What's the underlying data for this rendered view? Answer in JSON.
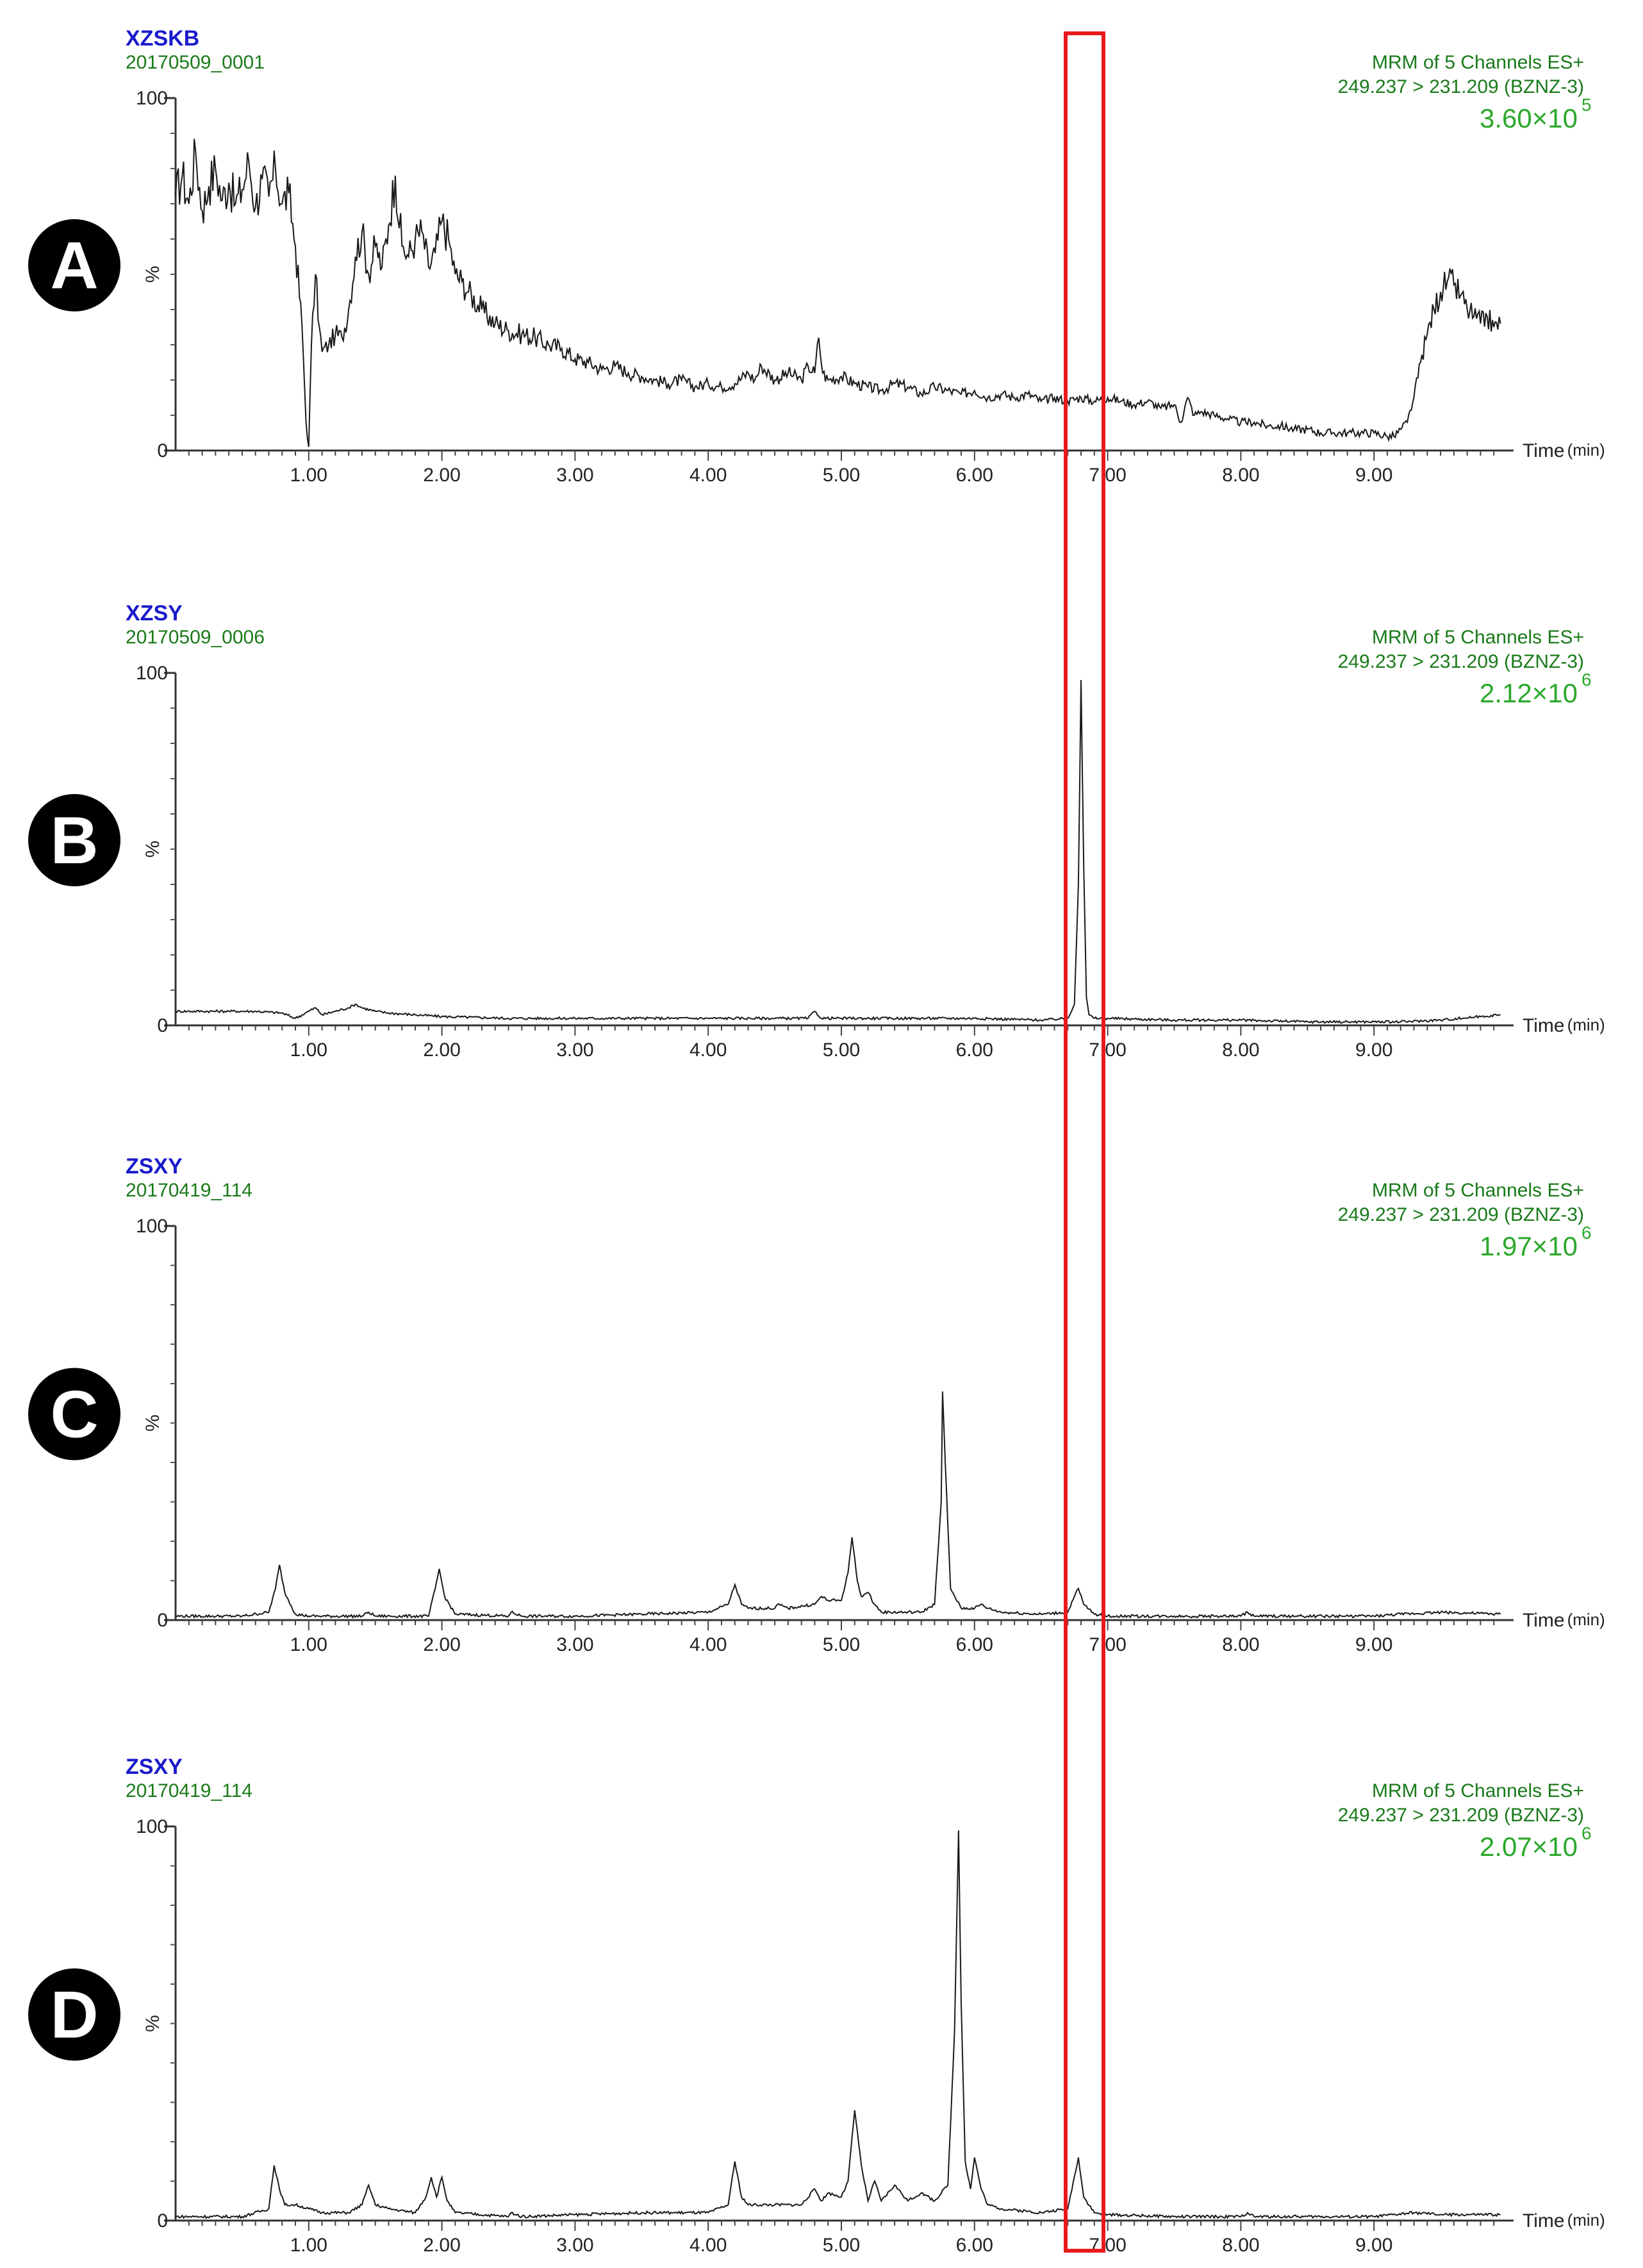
{
  "figure": {
    "highlight_color": "#e8191c",
    "sample_name_color": "#1a1acc",
    "meta_color": "#1a7a1a",
    "intensity_color": "#2aa82a",
    "trace_color": "#1a1a1a"
  },
  "chart_data": [
    {
      "type": "line",
      "panel_letter": "A",
      "sample_name": "XZSKB",
      "file_id": "20170509_0001",
      "meta_line1": "MRM of 5 Channels ES+",
      "meta_line2": "249.237 > 231.209 (BZNZ-3)",
      "intensity_mantissa": "3.60×10",
      "intensity_exponent": "5",
      "y_top_label": "100",
      "y_bottom_label": "0",
      "ylabel": "%",
      "xlabel": "Time",
      "xunit": "(min)",
      "xlim": [
        0,
        10
      ],
      "ylim": [
        0,
        100
      ],
      "xticks": [
        "1.00",
        "2.00",
        "3.00",
        "4.00",
        "5.00",
        "6.00",
        "7.00",
        "8.00",
        "9.00"
      ],
      "series": [
        {
          "x": [
            0,
            0.05,
            0.1,
            0.15,
            0.2,
            0.25,
            0.3,
            0.35,
            0.4,
            0.45,
            0.5,
            0.55,
            0.6,
            0.65,
            0.7,
            0.75,
            0.8,
            0.85,
            0.9,
            0.95,
            0.98,
            1.0,
            1.02,
            1.05,
            1.08,
            1.1,
            1.15,
            1.2,
            1.25,
            1.3,
            1.35,
            1.4,
            1.45,
            1.5,
            1.55,
            1.6,
            1.65,
            1.7,
            1.75,
            1.8,
            1.85,
            1.9,
            1.95,
            2.0,
            2.05,
            2.1,
            2.15,
            2.2,
            2.3,
            2.4,
            2.5,
            2.6,
            2.7,
            2.8,
            2.9,
            3.0,
            3.1,
            3.2,
            3.3,
            3.4,
            3.5,
            3.6,
            3.7,
            3.8,
            3.9,
            4.0,
            4.1,
            4.2,
            4.3,
            4.35,
            4.4,
            4.5,
            4.6,
            4.7,
            4.75,
            4.8,
            4.83,
            4.86,
            4.9,
            5.0,
            5.1,
            5.2,
            5.3,
            5.4,
            5.5,
            5.6,
            5.7,
            5.8,
            5.9,
            6.0,
            6.1,
            6.2,
            6.3,
            6.4,
            6.5,
            6.6,
            6.7,
            6.8,
            6.9,
            7.0,
            7.1,
            7.2,
            7.3,
            7.4,
            7.5,
            7.55,
            7.6,
            7.65,
            7.7,
            7.8,
            7.9,
            8.0,
            8.1,
            8.2,
            8.3,
            8.4,
            8.5,
            8.6,
            8.7,
            8.8,
            8.9,
            9.0,
            9.1,
            9.15,
            9.2,
            9.25,
            9.3,
            9.35,
            9.4,
            9.45,
            9.5,
            9.55,
            9.6,
            9.65,
            9.7,
            9.75,
            9.8,
            9.85,
            9.9,
            9.95
          ],
          "y": [
            72,
            78,
            70,
            85,
            68,
            75,
            80,
            71,
            76,
            70,
            74,
            82,
            69,
            77,
            72,
            80,
            70,
            73,
            58,
            35,
            8,
            1,
            30,
            50,
            35,
            28,
            30,
            33,
            32,
            40,
            55,
            62,
            50,
            58,
            52,
            64,
            78,
            58,
            55,
            60,
            62,
            52,
            56,
            65,
            60,
            50,
            48,
            45,
            40,
            36,
            34,
            33,
            32,
            30,
            29,
            26,
            25,
            23,
            24,
            22,
            21,
            20,
            19,
            20,
            18,
            19,
            18,
            19,
            22,
            20,
            24,
            20,
            22,
            20,
            24,
            22,
            32,
            22,
            20,
            21,
            19,
            18,
            17,
            19,
            18,
            16,
            18,
            17,
            16,
            17,
            15,
            16,
            15,
            16,
            14,
            15,
            14,
            15,
            14,
            15,
            14,
            13,
            14,
            12,
            13,
            8,
            15,
            10,
            11,
            10,
            9,
            8,
            8,
            7,
            7,
            6,
            6,
            5,
            5,
            5,
            5,
            5,
            4,
            4,
            6,
            8,
            15,
            25,
            33,
            40,
            45,
            48,
            47,
            44,
            40,
            38,
            36,
            38,
            35,
            36
          ]
        }
      ]
    },
    {
      "type": "line",
      "panel_letter": "B",
      "sample_name": "XZSY",
      "file_id": "20170509_0006",
      "meta_line1": "MRM of 5 Channels ES+",
      "meta_line2": "249.237 > 231.209 (BZNZ-3)",
      "intensity_mantissa": "2.12×10",
      "intensity_exponent": "6",
      "y_top_label": "100",
      "y_bottom_label": "0",
      "ylabel": "%",
      "xlabel": "Time",
      "xunit": "(min)",
      "xlim": [
        0,
        10
      ],
      "ylim": [
        0,
        100
      ],
      "xticks": [
        "1.00",
        "2.00",
        "3.00",
        "4.00",
        "5.00",
        "6.00",
        "7.00",
        "8.00",
        "9.00"
      ],
      "series": [
        {
          "x": [
            0,
            0.2,
            0.4,
            0.6,
            0.8,
            0.9,
            1.0,
            1.05,
            1.1,
            1.2,
            1.3,
            1.35,
            1.4,
            1.5,
            1.6,
            1.8,
            2.0,
            2.5,
            3.0,
            3.5,
            4.0,
            4.5,
            4.75,
            4.8,
            4.85,
            5.0,
            5.5,
            6.0,
            6.5,
            6.7,
            6.75,
            6.78,
            6.8,
            6.82,
            6.84,
            6.86,
            6.9,
            7.0,
            7.5,
            8.0,
            8.5,
            9.0,
            9.2,
            9.5,
            9.8,
            9.95
          ],
          "y": [
            4,
            4,
            4,
            4,
            3.5,
            2,
            4,
            5,
            3,
            4,
            5,
            6,
            5,
            4,
            3.5,
            3,
            2.5,
            2,
            2,
            2,
            2,
            2,
            2,
            4,
            2,
            2,
            2,
            2,
            1.5,
            2,
            6,
            40,
            98,
            45,
            8,
            3,
            2,
            2,
            1.5,
            1.5,
            1,
            1,
            1,
            1.5,
            2.5,
            3
          ]
        }
      ]
    },
    {
      "type": "line",
      "panel_letter": "C",
      "sample_name": "ZSXY",
      "file_id": "20170419_114",
      "meta_line1": "MRM of 5 Channels ES+",
      "meta_line2": "249.237 > 231.209 (BZNZ-3)",
      "intensity_mantissa": "1.97×10",
      "intensity_exponent": "6",
      "y_top_label": "100",
      "y_bottom_label": "0",
      "ylabel": "%",
      "xlabel": "Time",
      "xunit": "(min)",
      "xlim": [
        0,
        10
      ],
      "ylim": [
        0,
        100
      ],
      "xticks": [
        "1.00",
        "2.00",
        "3.00",
        "4.00",
        "5.00",
        "6.00",
        "7.00",
        "8.00",
        "9.00"
      ],
      "series": [
        {
          "x": [
            0,
            0.5,
            0.7,
            0.75,
            0.78,
            0.82,
            0.9,
            1.0,
            1.4,
            1.45,
            1.5,
            1.9,
            1.95,
            1.98,
            2.02,
            2.1,
            2.5,
            2.52,
            2.6,
            3.0,
            3.5,
            4.0,
            4.15,
            4.2,
            4.25,
            4.3,
            4.5,
            4.52,
            4.6,
            4.8,
            4.85,
            4.9,
            5.0,
            5.05,
            5.08,
            5.12,
            5.15,
            5.2,
            5.25,
            5.3,
            5.6,
            5.7,
            5.75,
            5.76,
            5.78,
            5.82,
            5.9,
            6.0,
            6.05,
            6.1,
            6.2,
            6.5,
            6.7,
            6.75,
            6.78,
            6.82,
            6.9,
            7.0,
            7.5,
            8.0,
            8.05,
            8.1,
            8.5,
            9.0,
            9.2,
            9.5,
            9.95
          ],
          "y": [
            1,
            1,
            2,
            8,
            14,
            7,
            1.5,
            1,
            1,
            2,
            1,
            1,
            8,
            13,
            6,
            1.5,
            1,
            2,
            1,
            1,
            1.5,
            2,
            4,
            9,
            4,
            3,
            3,
            4,
            3,
            4,
            6,
            5,
            5,
            12,
            21,
            10,
            6,
            7,
            4,
            2,
            2,
            4,
            30,
            58,
            40,
            8,
            3,
            3,
            4,
            3,
            2,
            1.5,
            2,
            6,
            8,
            4,
            1.5,
            1,
            1,
            1,
            2,
            1,
            1,
            1,
            1.5,
            2,
            1.5
          ]
        }
      ]
    },
    {
      "type": "line",
      "panel_letter": "D",
      "sample_name": "ZSXY",
      "file_id": "20170419_114",
      "meta_line1": "MRM of 5 Channels ES+",
      "meta_line2": "249.237 > 231.209 (BZNZ-3)",
      "intensity_mantissa": "2.07×10",
      "intensity_exponent": "6",
      "y_top_label": "100",
      "y_bottom_label": "0",
      "ylabel": "%",
      "xlabel": "Time",
      "xunit": "(min)",
      "xlim": [
        0,
        10
      ],
      "ylim": [
        0,
        100
      ],
      "xticks": [
        "1.00",
        "2.00",
        "3.00",
        "4.00",
        "5.00",
        "6.00",
        "7.00",
        "8.00",
        "9.00"
      ],
      "series": [
        {
          "x": [
            0,
            0.5,
            0.7,
            0.74,
            0.78,
            0.82,
            0.9,
            1.0,
            1.1,
            1.3,
            1.4,
            1.45,
            1.5,
            1.6,
            1.8,
            1.88,
            1.92,
            1.96,
            2.0,
            2.04,
            2.1,
            2.5,
            2.52,
            2.6,
            3.0,
            3.5,
            4.0,
            4.15,
            4.2,
            4.25,
            4.3,
            4.5,
            4.7,
            4.8,
            4.85,
            4.9,
            5.0,
            5.05,
            5.1,
            5.15,
            5.2,
            5.25,
            5.3,
            5.4,
            5.5,
            5.6,
            5.7,
            5.8,
            5.85,
            5.88,
            5.9,
            5.93,
            5.97,
            6.0,
            6.05,
            6.1,
            6.2,
            6.5,
            6.7,
            6.78,
            6.82,
            6.9,
            7.0,
            7.5,
            8.0,
            8.05,
            8.1,
            8.5,
            9.0,
            9.3,
            9.5,
            9.95
          ],
          "y": [
            1,
            1,
            3,
            14,
            8,
            4,
            4,
            3,
            2,
            2,
            4,
            9,
            4,
            3,
            2,
            6,
            11,
            6,
            11,
            5,
            2,
            1,
            2,
            1,
            1.5,
            2,
            2,
            4,
            15,
            6,
            4,
            4,
            4,
            8,
            5,
            7,
            6,
            10,
            28,
            14,
            5,
            10,
            5,
            9,
            5,
            7,
            5,
            9,
            48,
            99,
            55,
            15,
            8,
            16,
            8,
            4,
            3,
            2,
            3,
            16,
            6,
            2,
            1.5,
            1,
            1,
            2,
            1,
            1,
            1,
            2,
            1.5,
            1.5
          ]
        }
      ]
    }
  ]
}
